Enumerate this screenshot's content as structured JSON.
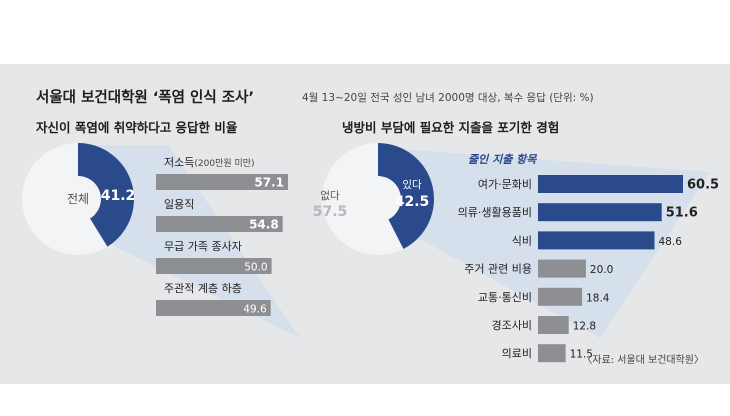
{
  "header": {
    "title": "서울대 보건대학원 ‘폭염 인식 조사’",
    "subtitle": "4월 13~20일 전국 성인 남녀 2000명 대상, 복수 응답 (단위: %)"
  },
  "colors": {
    "panel_bg": "#e6e7e9",
    "accent": "#2b4a8c",
    "bar_gray": "#8e8f93",
    "pie_light": "#f3f4f6",
    "wedge": "#c9d9ee"
  },
  "chart_data": [
    {
      "type": "pie",
      "title": "자신이 폭염에 취약하다고 응답한 비율",
      "slices": [
        {
          "label": "",
          "value": 41.2
        },
        {
          "label": "전체",
          "value": 58.8
        }
      ]
    },
    {
      "type": "bar",
      "categories": [
        "저소득",
        "일용직",
        "무급 가족 종사자",
        "주관적 계층 하층"
      ],
      "category_notes": [
        "(200만원 미만)",
        "",
        "",
        ""
      ],
      "values": [
        57.1,
        54.8,
        50.0,
        49.6
      ],
      "value_labels": [
        "57.1",
        "54.8",
        "50.0",
        "49.6"
      ]
    },
    {
      "type": "pie",
      "title": "냉방비 부담에 필요한 지출을 포기한 경험",
      "slices": [
        {
          "label": "있다",
          "value": 42.5
        },
        {
          "label": "없다",
          "value": 57.5
        }
      ]
    },
    {
      "type": "bar",
      "title": "줄인 지출 항목",
      "categories": [
        "여가·문화비",
        "의류·생활용품비",
        "식비",
        "주거 관련 비용",
        "교통·통신비",
        "경조사비",
        "의료비"
      ],
      "values": [
        60.5,
        51.6,
        48.6,
        20.0,
        18.4,
        12.8,
        11.5
      ],
      "value_labels": [
        "60.5",
        "51.6",
        "48.6",
        "20.0",
        "18.4",
        "12.8",
        "11.5"
      ]
    }
  ],
  "source": "〈자료: 서울대 보건대학원〉"
}
